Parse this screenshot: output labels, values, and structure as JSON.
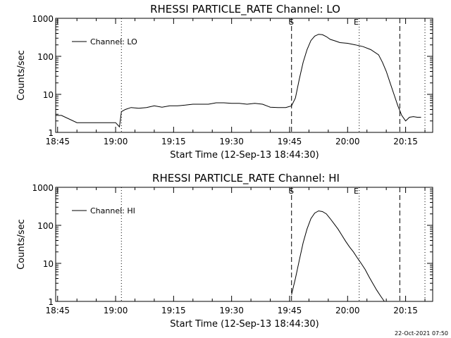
{
  "chart_data": [
    {
      "type": "line",
      "title": "RHESSI PARTICLE_RATE Channel: LO",
      "xlabel": "Start Time (12-Sep-13 18:44:30)",
      "ylabel": "Counts/sec",
      "y_scale": "log",
      "ylim": [
        1,
        1000
      ],
      "xlim": [
        "18:44:30",
        "20:22:00"
      ],
      "x_ticks": [
        "18:45",
        "19:00",
        "19:15",
        "19:30",
        "19:45",
        "20:00",
        "20:15"
      ],
      "y_ticks": [
        "1",
        "10",
        "100",
        "1000"
      ],
      "legend": {
        "position": "top-left",
        "entries": [
          "Channel: LO"
        ]
      },
      "markers": {
        "start_label": "S",
        "end_label": "E",
        "dashed_lines": [
          "19:45:30",
          "20:13:30"
        ],
        "dotted_lines": [
          "19:01:30",
          "20:03:00",
          "20:20:00"
        ]
      },
      "series": [
        {
          "name": "Channel: LO",
          "x": [
            "18:44:30",
            "18:45:00",
            "18:46:00",
            "18:50:00",
            "18:52:00",
            "18:54:00",
            "18:56:00",
            "18:58:00",
            "19:00:00",
            "19:01:00",
            "19:01:30",
            "19:02:30",
            "19:04:00",
            "19:06:00",
            "19:08:00",
            "19:10:00",
            "19:12:00",
            "19:14:00",
            "19:16:00",
            "19:18:00",
            "19:20:00",
            "19:22:00",
            "19:24:00",
            "19:26:00",
            "19:28:00",
            "19:30:00",
            "19:32:00",
            "19:34:00",
            "19:36:00",
            "19:38:00",
            "19:40:00",
            "19:42:00",
            "19:44:00",
            "19:45:30",
            "19:46:30",
            "19:47:30",
            "19:48:30",
            "19:49:30",
            "19:50:30",
            "19:51:30",
            "19:52:30",
            "19:53:30",
            "19:54:30",
            "19:55:30",
            "19:57:00",
            "19:58:00",
            "20:00:00",
            "20:02:00",
            "20:04:00",
            "20:06:00",
            "20:08:00",
            "20:09:00",
            "20:10:00",
            "20:11:00",
            "20:12:00",
            "20:13:00",
            "20:14:00",
            "20:15:00",
            "20:16:00",
            "20:17:00",
            "20:18:00",
            "20:19:00"
          ],
          "y": [
            2.8,
            2.8,
            2.8,
            1.8,
            1.8,
            1.8,
            1.8,
            1.8,
            1.8,
            1.4,
            3.5,
            4.0,
            4.5,
            4.3,
            4.5,
            5.0,
            4.6,
            5.0,
            5.0,
            5.2,
            5.5,
            5.5,
            5.5,
            6.0,
            6.0,
            5.8,
            5.8,
            5.5,
            5.8,
            5.5,
            4.6,
            4.5,
            4.5,
            5.0,
            8.0,
            25.0,
            70.0,
            150.0,
            260.0,
            340.0,
            380.0,
            370.0,
            330.0,
            280.0,
            250.0,
            230.0,
            220.0,
            200.0,
            180.0,
            150.0,
            110.0,
            70.0,
            40.0,
            20.0,
            10.0,
            5.0,
            2.8,
            2.0,
            2.5,
            2.6,
            2.5,
            2.5
          ]
        }
      ]
    },
    {
      "type": "line",
      "title": "RHESSI PARTICLE_RATE Channel: HI",
      "xlabel": "Start Time (12-Sep-13 18:44:30)",
      "ylabel": "Counts/sec",
      "y_scale": "log",
      "ylim": [
        1,
        1000
      ],
      "xlim": [
        "18:44:30",
        "20:22:00"
      ],
      "x_ticks": [
        "18:45",
        "19:00",
        "19:15",
        "19:30",
        "19:45",
        "20:00",
        "20:15"
      ],
      "y_ticks": [
        "1",
        "10",
        "100",
        "1000"
      ],
      "legend": {
        "position": "top-left",
        "entries": [
          "Channel: HI"
        ]
      },
      "markers": {
        "start_label": "S",
        "end_label": "E",
        "dashed_lines": [
          "19:45:30",
          "20:13:30"
        ],
        "dotted_lines": [
          "19:01:30",
          "20:03:00",
          "20:20:00"
        ]
      },
      "series": [
        {
          "name": "Channel: HI",
          "x": [
            "19:45:30",
            "19:46:30",
            "19:47:30",
            "19:48:30",
            "19:49:30",
            "19:50:30",
            "19:51:30",
            "19:52:30",
            "19:53:30",
            "19:54:30",
            "19:55:30",
            "19:56:30",
            "19:57:30",
            "19:58:30",
            "19:59:30",
            "20:00:30",
            "20:01:30",
            "20:02:30",
            "20:03:30",
            "20:04:30",
            "20:05:30",
            "20:06:30",
            "20:07:30",
            "20:08:30",
            "20:09:30"
          ],
          "y": [
            1.5,
            4.0,
            12.0,
            35.0,
            80.0,
            150.0,
            210.0,
            240.0,
            230.0,
            200.0,
            150.0,
            110.0,
            80.0,
            55.0,
            38.0,
            27.0,
            20.0,
            14.0,
            10.0,
            7.0,
            4.5,
            3.0,
            2.0,
            1.4,
            1.0
          ]
        }
      ]
    }
  ],
  "footer": {
    "timestamp": "22-Oct-2021 07:50"
  }
}
